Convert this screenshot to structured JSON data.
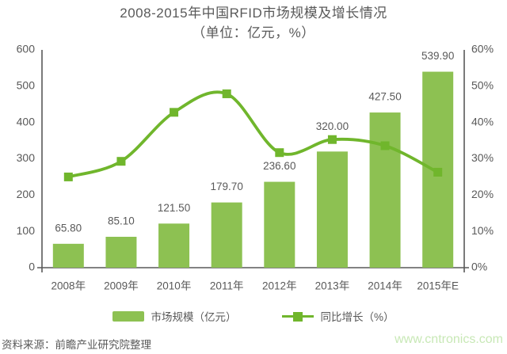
{
  "title": {
    "line1": "2008-2015年中国RFID市场规模及增长情况",
    "line2": "（单位：亿元，%）"
  },
  "chart_data": {
    "type": "bar+line",
    "categories": [
      "2008年",
      "2009年",
      "2010年",
      "2011年",
      "2012年",
      "2013年",
      "2014年",
      "2015年E"
    ],
    "series": [
      {
        "name": "市场规模（亿元）",
        "type": "bar",
        "values": [
          65.8,
          85.1,
          121.5,
          179.7,
          236.6,
          320.0,
          427.5,
          539.9
        ],
        "labels": [
          "65.80",
          "85.10",
          "121.50",
          "179.70",
          "236.60",
          "320.00",
          "427.50",
          "539.90"
        ],
        "color": "#8dc152"
      },
      {
        "name": "同比增长（%）",
        "type": "line",
        "values": [
          25.0,
          29.3,
          42.8,
          47.9,
          31.7,
          35.3,
          33.6,
          26.3
        ],
        "color": "#70b62c",
        "marker": "square"
      }
    ],
    "left_axis": {
      "ticks": [
        "0",
        "100",
        "200",
        "300",
        "400",
        "500",
        "600"
      ],
      "min": 0,
      "max": 600
    },
    "right_axis": {
      "ticks": [
        "0%",
        "10%",
        "20%",
        "30%",
        "40%",
        "50%",
        "60%"
      ],
      "min": 0,
      "max": 60
    },
    "grid": false,
    "legend_position": "bottom",
    "title": "2008-2015年中国RFID市场规模及增长情况（单位：亿元，%）"
  },
  "legend": {
    "items": [
      {
        "label": "市场规模（亿元）",
        "swatch": "bar"
      },
      {
        "label": "同比增长（%）",
        "swatch": "line"
      }
    ]
  },
  "footer": {
    "source": "资料来源：前瞻产业研究院整理",
    "watermark": "www.cntronics.com"
  },
  "colors": {
    "bar": "#8dc152",
    "line": "#70b62c",
    "text": "#595959",
    "axis": "#595959",
    "watermark": "#c8e8b6",
    "background": "#ffffff"
  }
}
